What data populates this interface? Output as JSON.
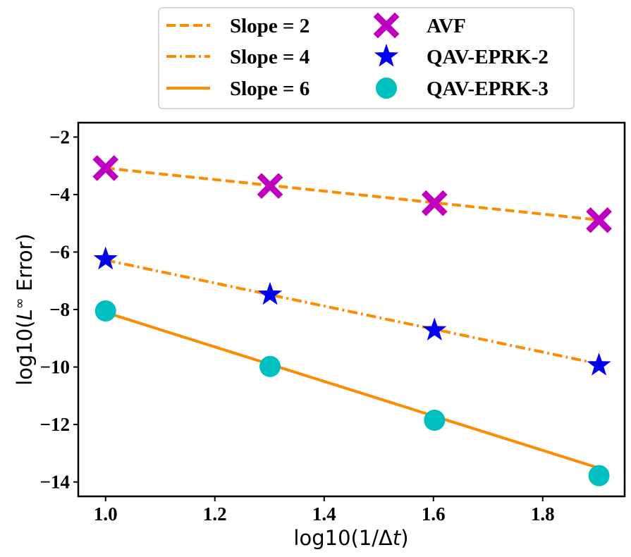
{
  "chart_data": {
    "type": "line",
    "title": "",
    "xlabel": "log10(1/Δt)",
    "ylabel": "log10(L∞ Error)",
    "xlabel_parts": {
      "pre": "log10(1/Δ",
      "italic": "t",
      "post": ")"
    },
    "ylabel_parts": {
      "pre": "log10(",
      "italic": "L",
      "sup": "∞",
      "post": " Error)"
    },
    "xlim": [
      0.95,
      1.95
    ],
    "ylim": [
      -14.5,
      -1.5
    ],
    "xticks": [
      1.0,
      1.2,
      1.4,
      1.6,
      1.8
    ],
    "xtick_labels": [
      "1.0",
      "1.2",
      "1.4",
      "1.6",
      "1.8"
    ],
    "yticks": [
      -2,
      -4,
      -6,
      -8,
      -10,
      -12,
      -14
    ],
    "ytick_labels": [
      "−2",
      "−4",
      "−6",
      "−8",
      "−10",
      "−12",
      "−14"
    ],
    "grid": false,
    "legend_position": "top-center, outside above plot, two columns",
    "reference_lines": [
      {
        "name": "Slope = 2",
        "style": "dashed",
        "color": "#ff8c00",
        "x": [
          1.0,
          1.903
        ],
        "y": [
          -3.08,
          -4.886
        ]
      },
      {
        "name": "Slope = 4",
        "style": "dashdot",
        "color": "#ff8c00",
        "x": [
          1.0,
          1.903
        ],
        "y": [
          -6.28,
          -9.892
        ]
      },
      {
        "name": "Slope = 6",
        "style": "solid",
        "color": "#ff8c00",
        "x": [
          1.0,
          1.903
        ],
        "y": [
          -8.1,
          -13.518
        ]
      }
    ],
    "series": [
      {
        "name": "AVF",
        "marker": "x-cross",
        "color": "#c000c0",
        "x": [
          1.0,
          1.301,
          1.602,
          1.903
        ],
        "y": [
          -3.08,
          -3.7,
          -4.3,
          -4.89
        ]
      },
      {
        "name": "QAV-EPRK-2",
        "marker": "star",
        "color": "#0000ee",
        "x": [
          1.0,
          1.301,
          1.602,
          1.903
        ],
        "y": [
          -6.25,
          -7.48,
          -8.72,
          -9.94
        ]
      },
      {
        "name": "QAV-EPRK-3",
        "marker": "circle",
        "color": "#00bfbf",
        "x": [
          1.0,
          1.301,
          1.602,
          1.903
        ],
        "y": [
          -8.05,
          -9.98,
          -11.85,
          -13.78
        ]
      }
    ]
  }
}
